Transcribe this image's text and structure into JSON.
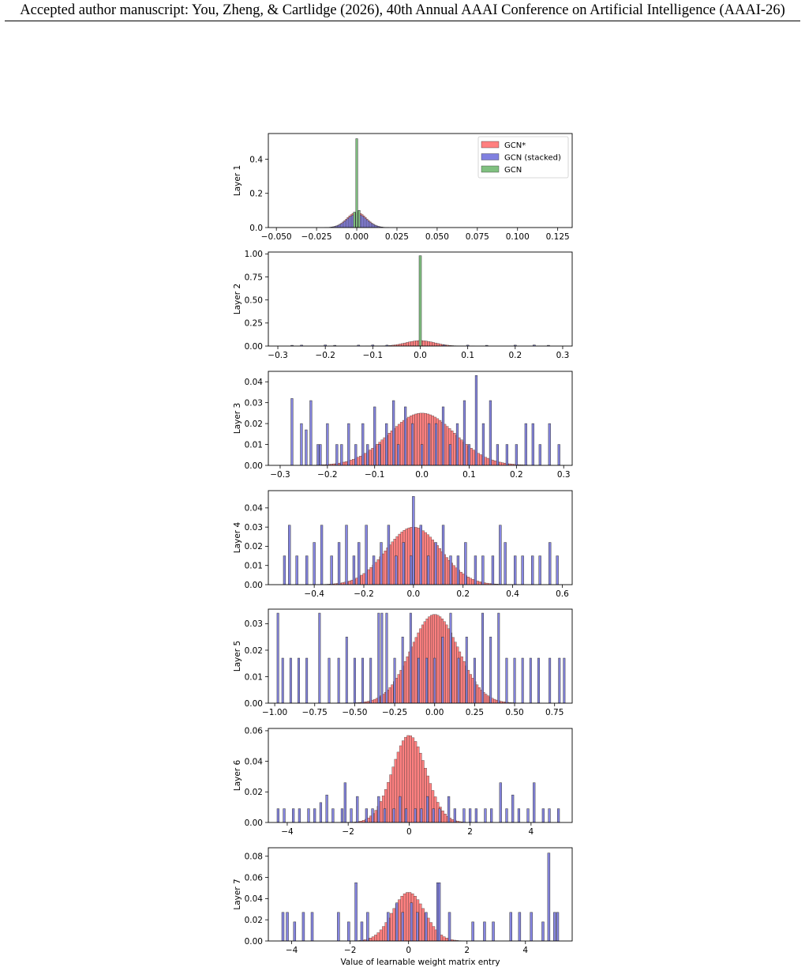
{
  "header": {
    "text": "Accepted author manuscript: You, Zheng, & Cartlidge (2026), 40th Annual AAAI Conference on Artificial Intelligence (AAAI-26)"
  },
  "colors": {
    "gcn_star": "#ff8080",
    "gcn_stacked": "#8080e0",
    "gcn": "#80c080",
    "bar_edge": "#333333"
  },
  "chart_data": [
    {
      "type": "bar",
      "subplot": "layer-1",
      "ylabel": "Layer 1",
      "xlabel": "",
      "xlim": [
        -0.055,
        0.134
      ],
      "ylim": [
        0,
        0.55
      ],
      "xticks": [
        -0.05,
        -0.025,
        0.0,
        0.025,
        0.05,
        0.075,
        0.1,
        0.125
      ],
      "xtick_labels": [
        "−0.050",
        "−0.025",
        "0.000",
        "0.025",
        "0.050",
        "0.075",
        "0.100",
        "0.125"
      ],
      "yticks": [
        0.0,
        0.2,
        0.4
      ],
      "ytick_labels": [
        "0.0",
        "0.2",
        "0.4"
      ],
      "legend": {
        "position": "top-right",
        "entries": [
          "GCN*",
          "GCN (stacked)",
          "GCN"
        ]
      },
      "series": [
        {
          "name": "GCN*",
          "kind": "gaussian",
          "mu": 0.0,
          "sigma": 0.006,
          "peak": 0.09,
          "range": [
            -0.02,
            0.02
          ],
          "bins": 40
        },
        {
          "name": "GCN (stacked)",
          "kind": "gaussian",
          "mu": 0.0,
          "sigma": 0.006,
          "peak": 0.08,
          "range": [
            -0.02,
            0.02
          ],
          "bins": 40
        },
        {
          "name": "GCN",
          "kind": "points",
          "x": [
            -0.0015,
            0.0,
            0.0015
          ],
          "y": [
            0.09,
            0.52,
            0.1
          ],
          "width": 0.0012
        }
      ]
    },
    {
      "type": "bar",
      "subplot": "layer-2",
      "ylabel": "Layer 2",
      "xlabel": "",
      "xlim": [
        -0.32,
        0.32
      ],
      "ylim": [
        0,
        1.02
      ],
      "xticks": [
        -0.3,
        -0.2,
        -0.1,
        0.0,
        0.1,
        0.2,
        0.3
      ],
      "xtick_labels": [
        "−0.3",
        "−0.2",
        "−0.1",
        "0.0",
        "0.1",
        "0.2",
        "0.3"
      ],
      "yticks": [
        0.0,
        0.25,
        0.5,
        0.75,
        1.0
      ],
      "ytick_labels": [
        "0.00",
        "0.25",
        "0.50",
        "0.75",
        "1.00"
      ],
      "series": [
        {
          "name": "GCN*",
          "kind": "gaussian",
          "mu": 0.0,
          "sigma": 0.03,
          "peak": 0.06,
          "range": [
            -0.3,
            0.3
          ],
          "bins": 120
        },
        {
          "name": "GCN (stacked)",
          "kind": "points",
          "x": [
            -0.27,
            -0.25,
            -0.2,
            -0.18,
            -0.13,
            -0.1,
            -0.07,
            0.05,
            0.1,
            0.14,
            0.2,
            0.24,
            0.27
          ],
          "y": [
            0.008,
            0.01,
            0.012,
            0.008,
            0.01,
            0.012,
            0.01,
            0.012,
            0.01,
            0.008,
            0.01,
            0.012,
            0.008
          ],
          "width": 0.005
        },
        {
          "name": "GCN",
          "kind": "points",
          "x": [
            0.0
          ],
          "y": [
            0.98
          ],
          "width": 0.005
        }
      ]
    },
    {
      "type": "bar",
      "subplot": "layer-3",
      "ylabel": "Layer 3",
      "xlabel": "",
      "xlim": [
        -0.325,
        0.318
      ],
      "ylim": [
        0,
        0.045
      ],
      "xticks": [
        -0.3,
        -0.2,
        -0.1,
        0.0,
        0.1,
        0.2,
        0.3
      ],
      "xtick_labels": [
        "−0.3",
        "−0.2",
        "−0.1",
        "0.0",
        "0.1",
        "0.2",
        "0.3"
      ],
      "yticks": [
        0.0,
        0.01,
        0.02,
        0.03,
        0.04
      ],
      "ytick_labels": [
        "0.00",
        "0.01",
        "0.02",
        "0.03",
        "0.04"
      ],
      "series": [
        {
          "name": "GCN*",
          "kind": "gaussian",
          "mu": 0.0,
          "sigma": 0.07,
          "peak": 0.025,
          "range": [
            -0.28,
            0.28
          ],
          "bins": 110
        },
        {
          "name": "GCN (stacked)",
          "kind": "points",
          "x": [
            -0.275,
            -0.255,
            -0.245,
            -0.235,
            -0.22,
            -0.215,
            -0.2,
            -0.18,
            -0.17,
            -0.155,
            -0.14,
            -0.125,
            -0.115,
            -0.1,
            -0.09,
            -0.075,
            -0.06,
            -0.05,
            -0.035,
            -0.02,
            0.0,
            0.015,
            0.03,
            0.045,
            0.06,
            0.075,
            0.09,
            0.1,
            0.115,
            0.13,
            0.145,
            0.16,
            0.18,
            0.2,
            0.22,
            0.235,
            0.25,
            0.27,
            0.29
          ],
          "y": [
            0.032,
            0.02,
            0.017,
            0.031,
            0.01,
            0.01,
            0.02,
            0.01,
            0.01,
            0.02,
            0.01,
            0.02,
            0.01,
            0.028,
            0.01,
            0.02,
            0.031,
            0.01,
            0.028,
            0.02,
            0.01,
            0.02,
            0.02,
            0.028,
            0.01,
            0.02,
            0.031,
            0.01,
            0.043,
            0.02,
            0.031,
            0.01,
            0.01,
            0.01,
            0.02,
            0.02,
            0.01,
            0.02,
            0.01
          ],
          "width": 0.0045
        }
      ]
    },
    {
      "type": "bar",
      "subplot": "layer-4",
      "ylabel": "Layer 4",
      "xlabel": "",
      "xlim": [
        -0.585,
        0.64
      ],
      "ylim": [
        0,
        0.049
      ],
      "xticks": [
        -0.4,
        -0.2,
        0.0,
        0.2,
        0.4,
        0.6
      ],
      "xtick_labels": [
        "−0.4",
        "−0.2",
        "0.0",
        "0.2",
        "0.4",
        "0.6"
      ],
      "yticks": [
        0.0,
        0.01,
        0.02,
        0.03,
        0.04
      ],
      "ytick_labels": [
        "0.00",
        "0.01",
        "0.02",
        "0.03",
        "0.04"
      ],
      "series": [
        {
          "name": "GCN*",
          "kind": "gaussian",
          "mu": 0.0,
          "sigma": 0.11,
          "peak": 0.03,
          "range": [
            -0.5,
            0.55
          ],
          "bins": 110
        },
        {
          "name": "GCN (stacked)",
          "kind": "points",
          "x": [
            -0.52,
            -0.5,
            -0.47,
            -0.43,
            -0.4,
            -0.37,
            -0.33,
            -0.3,
            -0.27,
            -0.24,
            -0.22,
            -0.19,
            -0.16,
            -0.13,
            -0.1,
            -0.07,
            -0.04,
            -0.01,
            0.0,
            0.03,
            0.06,
            0.09,
            0.12,
            0.15,
            0.18,
            0.21,
            0.25,
            0.28,
            0.32,
            0.35,
            0.37,
            0.41,
            0.44,
            0.48,
            0.51,
            0.55,
            0.58
          ],
          "y": [
            0.015,
            0.031,
            0.015,
            0.015,
            0.022,
            0.031,
            0.015,
            0.022,
            0.031,
            0.015,
            0.022,
            0.031,
            0.015,
            0.022,
            0.031,
            0.015,
            0.022,
            0.015,
            0.046,
            0.031,
            0.015,
            0.022,
            0.031,
            0.015,
            0.015,
            0.022,
            0.015,
            0.015,
            0.015,
            0.031,
            0.022,
            0.015,
            0.015,
            0.015,
            0.015,
            0.022,
            0.015
          ],
          "width": 0.009
        }
      ]
    },
    {
      "type": "bar",
      "subplot": "layer-5",
      "ylabel": "Layer 5",
      "xlabel": "",
      "xlim": [
        -1.04,
        0.86
      ],
      "ylim": [
        0,
        0.0355
      ],
      "xticks": [
        -1.0,
        -0.75,
        -0.5,
        -0.25,
        0.0,
        0.25,
        0.5,
        0.75
      ],
      "xtick_labels": [
        "−1.00",
        "−0.75",
        "−0.50",
        "−0.25",
        "0.00",
        "0.25",
        "0.50",
        "0.75"
      ],
      "yticks": [
        0.0,
        0.01,
        0.02,
        0.03
      ],
      "ytick_labels": [
        "0.00",
        "0.01",
        "0.02",
        "0.03"
      ],
      "series": [
        {
          "name": "GCN*",
          "kind": "gaussian",
          "mu": 0.0,
          "sigma": 0.15,
          "peak": 0.0335,
          "range": [
            -0.75,
            0.75
          ],
          "bins": 110
        },
        {
          "name": "GCN (stacked)",
          "kind": "points",
          "x": [
            -0.98,
            -0.95,
            -0.9,
            -0.85,
            -0.8,
            -0.72,
            -0.66,
            -0.6,
            -0.55,
            -0.5,
            -0.45,
            -0.4,
            -0.35,
            -0.33,
            -0.3,
            -0.25,
            -0.2,
            -0.15,
            -0.1,
            -0.05,
            0.0,
            0.05,
            0.1,
            0.15,
            0.2,
            0.25,
            0.3,
            0.35,
            0.4,
            0.45,
            0.5,
            0.55,
            0.6,
            0.65,
            0.72,
            0.78,
            0.81
          ],
          "y": [
            0.034,
            0.017,
            0.017,
            0.017,
            0.017,
            0.034,
            0.017,
            0.017,
            0.025,
            0.017,
            0.017,
            0.017,
            0.034,
            0.034,
            0.034,
            0.017,
            0.025,
            0.034,
            0.017,
            0.017,
            0.017,
            0.025,
            0.034,
            0.017,
            0.025,
            0.017,
            0.034,
            0.025,
            0.034,
            0.017,
            0.017,
            0.017,
            0.017,
            0.017,
            0.017,
            0.017,
            0.017
          ],
          "width": 0.012
        }
      ]
    },
    {
      "type": "bar",
      "subplot": "layer-6",
      "ylabel": "Layer 6",
      "xlabel": "",
      "xlim": [
        -4.62,
        5.35
      ],
      "ylim": [
        0,
        0.0615
      ],
      "xticks": [
        -4,
        -2,
        0,
        2,
        4
      ],
      "xtick_labels": [
        "−4",
        "−2",
        "0",
        "2",
        "4"
      ],
      "yticks": [
        0.0,
        0.02,
        0.04,
        0.06
      ],
      "ytick_labels": [
        "0.00",
        "0.02",
        "0.04",
        "0.06"
      ],
      "series": [
        {
          "name": "GCN*",
          "kind": "gaussian",
          "mu": 0.0,
          "sigma": 0.55,
          "peak": 0.057,
          "range": [
            -3,
            3.5
          ],
          "bins": 80
        },
        {
          "name": "GCN (stacked)",
          "kind": "points",
          "x": [
            -4.3,
            -4.1,
            -3.8,
            -3.6,
            -3.3,
            -3.1,
            -2.9,
            -2.7,
            -2.5,
            -2.2,
            -2.1,
            -1.9,
            -1.7,
            -1.4,
            -1.2,
            -1.0,
            -0.8,
            -0.5,
            -0.3,
            -0.1,
            0.2,
            0.4,
            0.6,
            0.8,
            1.0,
            1.3,
            1.5,
            1.8,
            2.0,
            2.2,
            2.5,
            2.7,
            3.0,
            3.2,
            3.4,
            3.6,
            3.9,
            4.1,
            4.4,
            4.6,
            4.9
          ],
          "y": [
            0.009,
            0.009,
            0.009,
            0.009,
            0.009,
            0.009,
            0.013,
            0.018,
            0.009,
            0.009,
            0.026,
            0.009,
            0.017,
            0.009,
            0.009,
            0.017,
            0.009,
            0.009,
            0.017,
            0.009,
            0.009,
            0.009,
            0.017,
            0.009,
            0.009,
            0.017,
            0.009,
            0.009,
            0.009,
            0.009,
            0.009,
            0.009,
            0.026,
            0.009,
            0.018,
            0.009,
            0.009,
            0.026,
            0.009,
            0.009,
            0.009
          ],
          "width": 0.07
        }
      ]
    },
    {
      "type": "bar",
      "subplot": "layer-7",
      "ylabel": "Layer 7",
      "xlabel": "Value of learnable weight matrix entry",
      "xlim": [
        -4.8,
        5.6
      ],
      "ylim": [
        0,
        0.088
      ],
      "xticks": [
        -4,
        -2,
        0,
        2,
        4
      ],
      "xtick_labels": [
        "−4",
        "−2",
        "0",
        "2",
        "4"
      ],
      "yticks": [
        0.0,
        0.02,
        0.04,
        0.06,
        0.08
      ],
      "ytick_labels": [
        "0.00",
        "0.02",
        "0.04",
        "0.06",
        "0.08"
      ],
      "series": [
        {
          "name": "GCN*",
          "kind": "gaussian",
          "mu": 0.0,
          "sigma": 0.55,
          "peak": 0.046,
          "range": [
            -4.5,
            4.5
          ],
          "bins": 100
        },
        {
          "name": "GCN (stacked)",
          "kind": "points",
          "x": [
            -4.3,
            -4.15,
            -3.9,
            -3.6,
            -3.3,
            -2.4,
            -2.05,
            -1.8,
            -1.6,
            -1.4,
            -0.7,
            -0.4,
            -0.2,
            0.1,
            0.3,
            0.6,
            1.0,
            1.05,
            1.4,
            2.2,
            2.6,
            2.9,
            3.5,
            3.8,
            4.2,
            4.6,
            4.8,
            5.0,
            5.1
          ],
          "y": [
            0.027,
            0.027,
            0.018,
            0.027,
            0.027,
            0.027,
            0.018,
            0.055,
            0.018,
            0.027,
            0.027,
            0.036,
            0.027,
            0.036,
            0.027,
            0.027,
            0.055,
            0.055,
            0.027,
            0.018,
            0.018,
            0.018,
            0.027,
            0.027,
            0.027,
            0.018,
            0.083,
            0.027,
            0.027
          ],
          "width": 0.08
        }
      ]
    }
  ]
}
